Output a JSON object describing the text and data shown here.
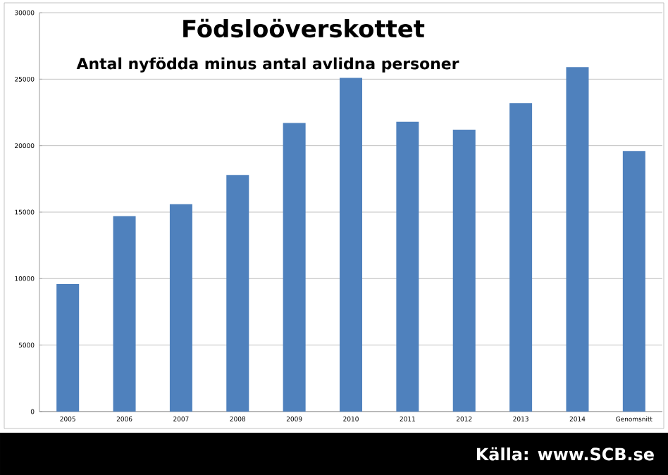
{
  "chart_data": {
    "type": "bar",
    "title": "Födsloöverskottet",
    "subtitle": "Antal nyfödda minus antal avlidna personer",
    "categories": [
      "2005",
      "2006",
      "2007",
      "2008",
      "2009",
      "2010",
      "2011",
      "2012",
      "2013",
      "2014",
      "Genomsnitt"
    ],
    "values": [
      9600,
      14700,
      15600,
      17800,
      21700,
      25100,
      21800,
      21200,
      23200,
      25900,
      19600
    ],
    "color": "#4f81bd",
    "ylim": [
      0,
      30000
    ],
    "yticks": [
      0,
      5000,
      10000,
      15000,
      20000,
      25000,
      30000
    ],
    "grid": "y",
    "annotations": [
      "Källa: www.SCB.se"
    ]
  }
}
